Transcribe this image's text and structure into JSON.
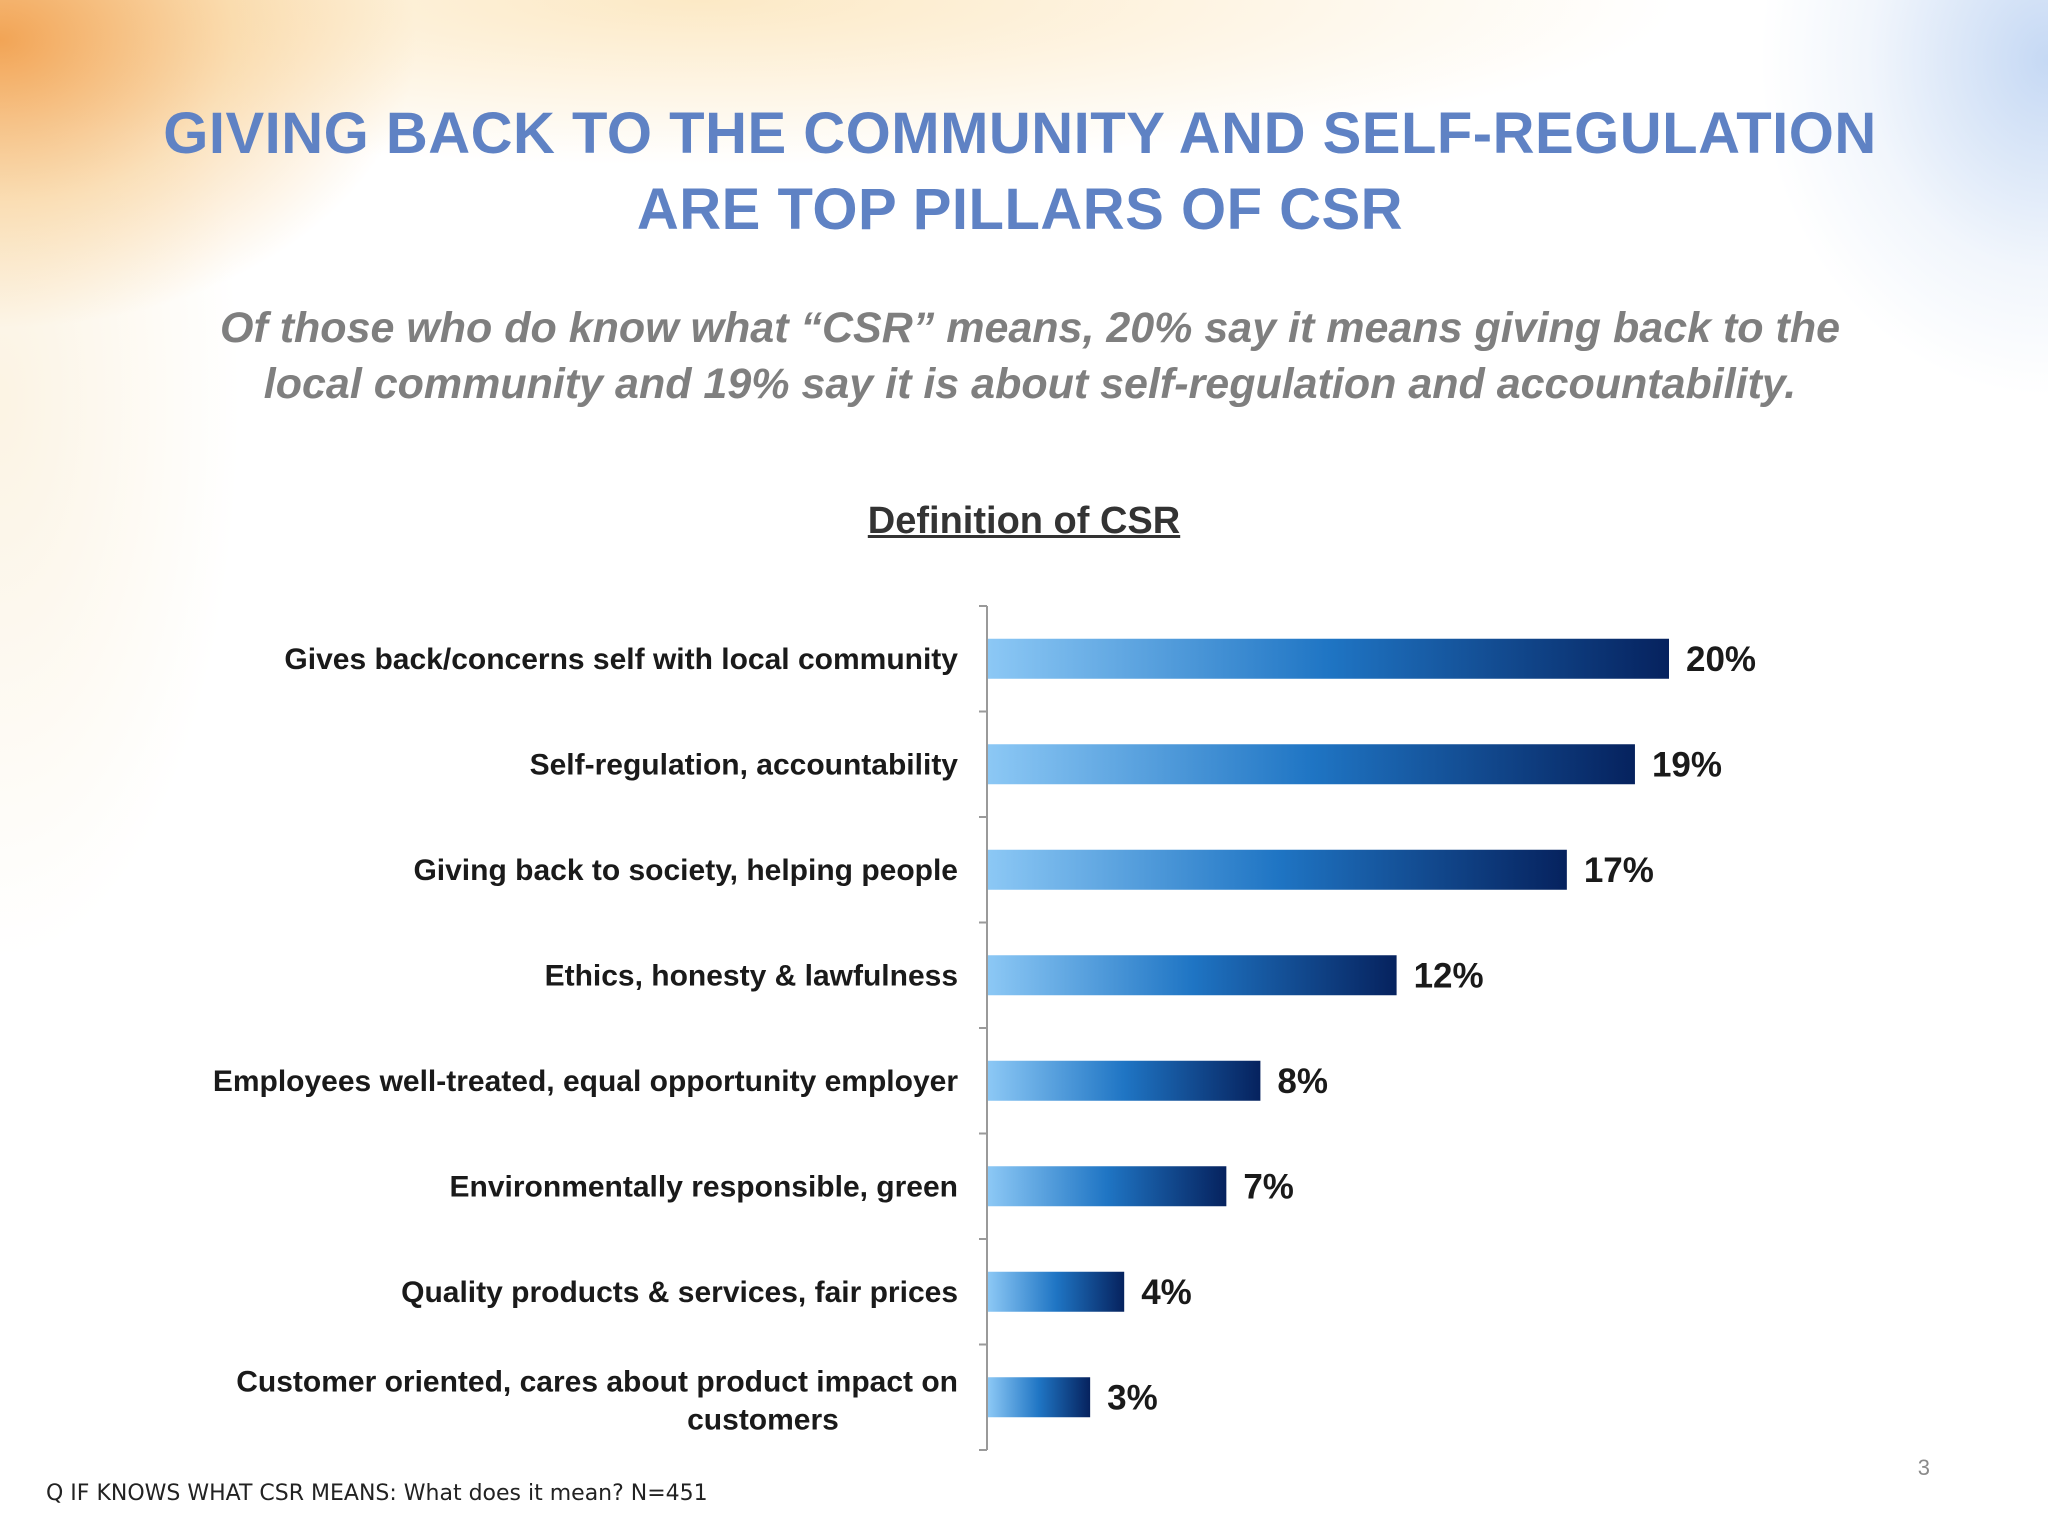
{
  "slide": {
    "title_lines": [
      "GIVING BACK TO THE COMMUNITY AND SELF-REGULATION",
      "ARE TOP PILLARS OF CSR"
    ],
    "subtitle_lines": [
      "Of those who do know what “CSR” means, 20% say it means giving back to the",
      "local community and 19% say it is about self-regulation and accountability."
    ],
    "footnote": "Q IF KNOWS WHAT CSR MEANS: What does it mean?  N=451",
    "page_number": "3",
    "colors": {
      "title": "#5f82c4",
      "subtitle": "#7f7f7f",
      "bar_gradient_start": "#8cc8f5",
      "bar_gradient_mid": "#1f75c4",
      "bar_gradient_end": "#06225e"
    }
  },
  "chart_data": {
    "type": "bar",
    "orientation": "horizontal",
    "title": "Definition of CSR",
    "categories": [
      "Gives back/concerns self with local community",
      "Self-regulation, accountability",
      "Giving back to society, helping people",
      "Ethics, honesty & lawfulness",
      "Employees well-treated, equal opportunity employer",
      "Environmentally responsible, green",
      "Quality products & services, fair prices",
      "Customer oriented, cares about product impact on customers"
    ],
    "values": [
      20,
      19,
      17,
      12,
      8,
      7,
      4,
      3
    ],
    "value_labels": [
      "20%",
      "19%",
      "17%",
      "12%",
      "8%",
      "7%",
      "4%",
      "3%"
    ],
    "unit": "%",
    "grid": false,
    "legend": "none"
  }
}
